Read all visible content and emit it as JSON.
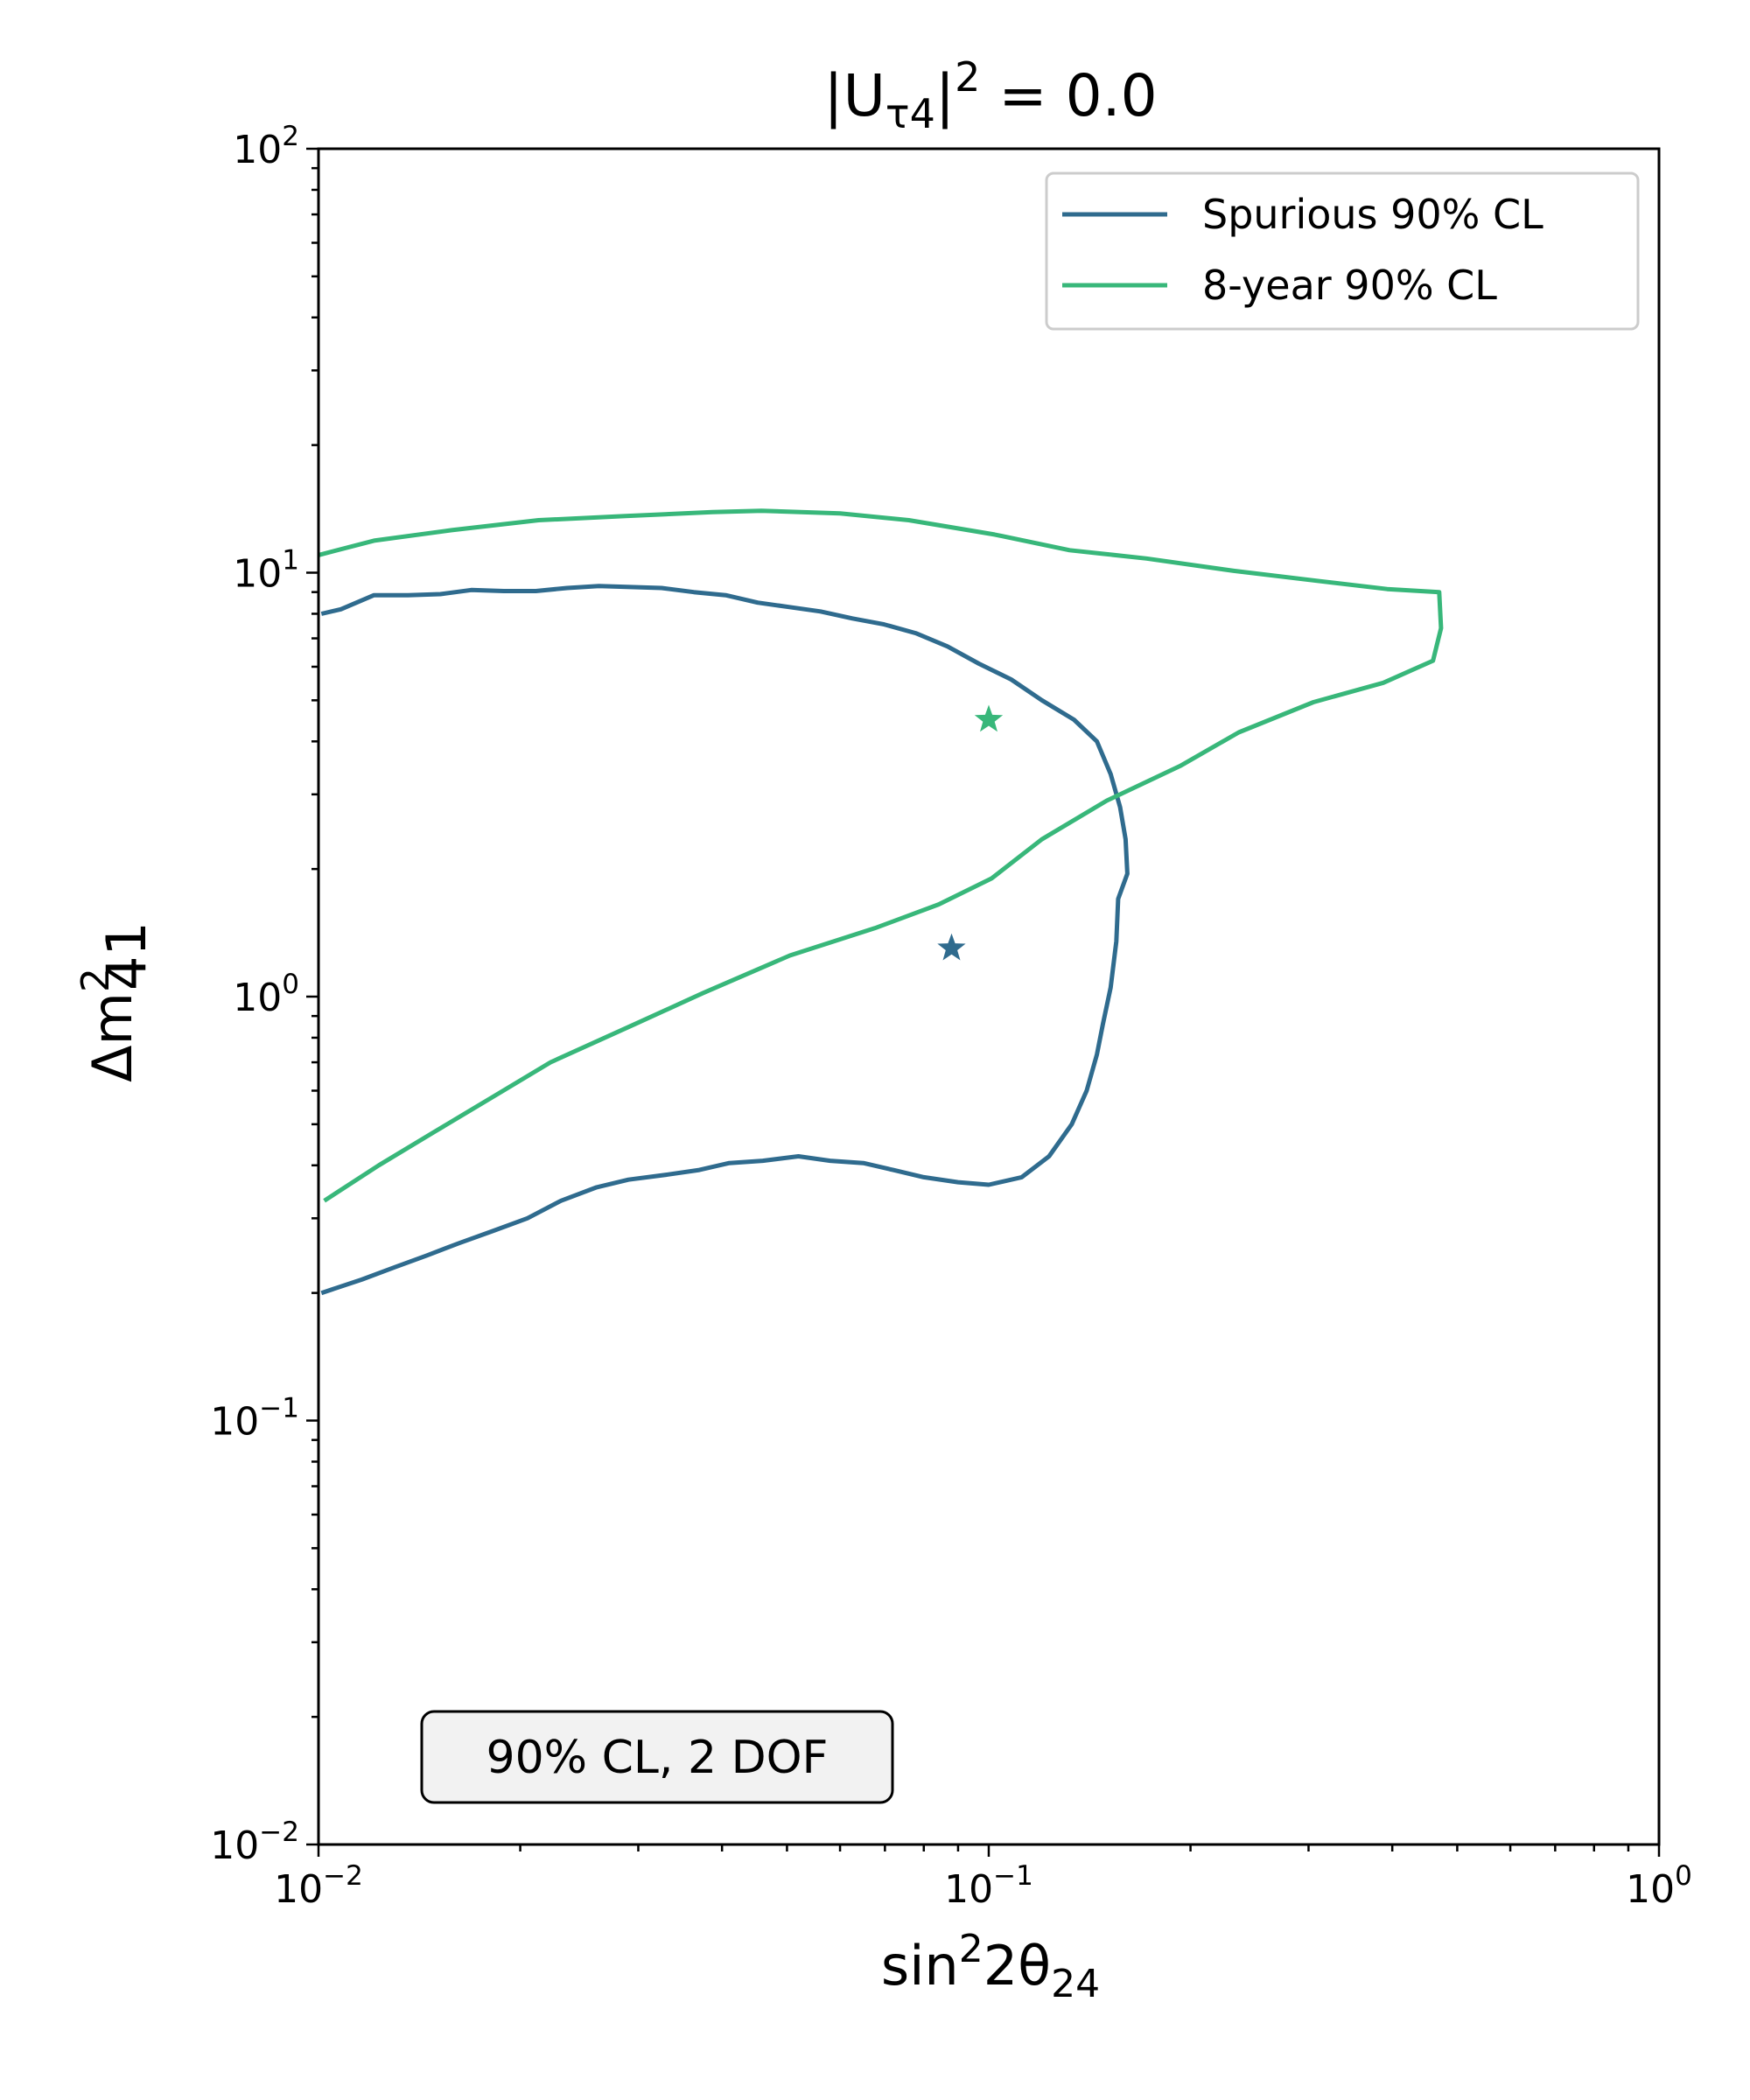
{
  "chart_data": {
    "type": "line",
    "title": {
      "prefix": "|U",
      "subscript": "τ4",
      "close": "|",
      "superscript": "2",
      "suffix": " = 0.0"
    },
    "xlabel": {
      "base": "sin",
      "superscript": "2",
      "middle": "2θ",
      "subscript": "24"
    },
    "ylabel": {
      "base": "Δm",
      "superscript": "2",
      "subscript": "41"
    },
    "x_scale": "log",
    "y_scale": "log",
    "xlim": [
      0.01,
      1
    ],
    "ylim": [
      0.01,
      100
    ],
    "x_ticks": [
      {
        "value": 0.01,
        "base": "10",
        "exp": "−2"
      },
      {
        "value": 0.1,
        "base": "10",
        "exp": "−1"
      },
      {
        "value": 1,
        "base": "10",
        "exp": "0"
      }
    ],
    "y_ticks": [
      {
        "value": 0.01,
        "base": "10",
        "exp": "−2"
      },
      {
        "value": 0.1,
        "base": "10",
        "exp": "−1"
      },
      {
        "value": 1,
        "base": "10",
        "exp": "0"
      },
      {
        "value": 10,
        "base": "10",
        "exp": "1"
      },
      {
        "value": 100,
        "base": "10",
        "exp": "2"
      }
    ],
    "grid": false,
    "legend_position": "top-right",
    "annotation": "90% CL, 2 DOF",
    "series": [
      {
        "name": "Spurious 90% CL",
        "color": "#2f6b8e",
        "best_fit": [
          0.088,
          1.3
        ],
        "points": [
          [
            0.0101,
            8.0
          ],
          [
            0.0108,
            8.2
          ],
          [
            0.0121,
            8.85
          ],
          [
            0.0136,
            8.85
          ],
          [
            0.0152,
            8.9
          ],
          [
            0.0169,
            9.1
          ],
          [
            0.0189,
            9.05
          ],
          [
            0.0211,
            9.05
          ],
          [
            0.0235,
            9.2
          ],
          [
            0.0262,
            9.3
          ],
          [
            0.0292,
            9.25
          ],
          [
            0.0325,
            9.2
          ],
          [
            0.0363,
            9.0
          ],
          [
            0.0405,
            8.85
          ],
          [
            0.0452,
            8.5
          ],
          [
            0.0503,
            8.3
          ],
          [
            0.0561,
            8.1
          ],
          [
            0.0626,
            7.8
          ],
          [
            0.0698,
            7.55
          ],
          [
            0.0778,
            7.2
          ],
          [
            0.0868,
            6.7
          ],
          [
            0.0967,
            6.1
          ],
          [
            0.108,
            5.6
          ],
          [
            0.12,
            5.0
          ],
          [
            0.134,
            4.5
          ],
          [
            0.145,
            4.0
          ],
          [
            0.152,
            3.35
          ],
          [
            0.157,
            2.8
          ],
          [
            0.16,
            2.35
          ],
          [
            0.161,
            1.95
          ],
          [
            0.156,
            1.7
          ],
          [
            0.155,
            1.35
          ],
          [
            0.152,
            1.05
          ],
          [
            0.148,
            0.86
          ],
          [
            0.145,
            0.73
          ],
          [
            0.14,
            0.6
          ],
          [
            0.133,
            0.5
          ],
          [
            0.123,
            0.42
          ],
          [
            0.112,
            0.375
          ],
          [
            0.1,
            0.36
          ],
          [
            0.09,
            0.365
          ],
          [
            0.08,
            0.375
          ],
          [
            0.072,
            0.39
          ],
          [
            0.065,
            0.405
          ],
          [
            0.058,
            0.41
          ],
          [
            0.052,
            0.42
          ],
          [
            0.046,
            0.41
          ],
          [
            0.041,
            0.405
          ],
          [
            0.037,
            0.39
          ],
          [
            0.033,
            0.38
          ],
          [
            0.029,
            0.37
          ],
          [
            0.026,
            0.355
          ],
          [
            0.023,
            0.33
          ],
          [
            0.0205,
            0.3
          ],
          [
            0.0182,
            0.28
          ],
          [
            0.0162,
            0.262
          ],
          [
            0.0145,
            0.245
          ],
          [
            0.013,
            0.23
          ],
          [
            0.0116,
            0.215
          ],
          [
            0.0101,
            0.2
          ]
        ]
      },
      {
        "name": "8-year 90% CL",
        "color": "#38b77a",
        "best_fit": [
          0.1,
          4.5
        ],
        "points": [
          [
            0.01,
            11.0
          ],
          [
            0.0121,
            11.9
          ],
          [
            0.0158,
            12.6
          ],
          [
            0.0213,
            13.3
          ],
          [
            0.0287,
            13.6
          ],
          [
            0.0387,
            13.9
          ],
          [
            0.0458,
            14.0
          ],
          [
            0.06,
            13.8
          ],
          [
            0.076,
            13.3
          ],
          [
            0.102,
            12.3
          ],
          [
            0.132,
            11.3
          ],
          [
            0.172,
            10.8
          ],
          [
            0.232,
            10.1
          ],
          [
            0.312,
            9.55
          ],
          [
            0.393,
            9.15
          ],
          [
            0.47,
            9.0
          ],
          [
            0.473,
            7.4
          ],
          [
            0.46,
            6.2
          ],
          [
            0.388,
            5.5
          ],
          [
            0.305,
            4.95
          ],
          [
            0.236,
            4.2
          ],
          [
            0.193,
            3.5
          ],
          [
            0.15,
            2.9
          ],
          [
            0.12,
            2.35
          ],
          [
            0.101,
            1.9
          ],
          [
            0.0842,
            1.65
          ],
          [
            0.0676,
            1.45
          ],
          [
            0.0505,
            1.25
          ],
          [
            0.0375,
            1.02
          ],
          [
            0.0296,
            0.86
          ],
          [
            0.0222,
            0.7
          ],
          [
            0.0182,
            0.58
          ],
          [
            0.0149,
            0.48
          ],
          [
            0.0123,
            0.4
          ],
          [
            0.0102,
            0.33
          ]
        ]
      }
    ]
  }
}
